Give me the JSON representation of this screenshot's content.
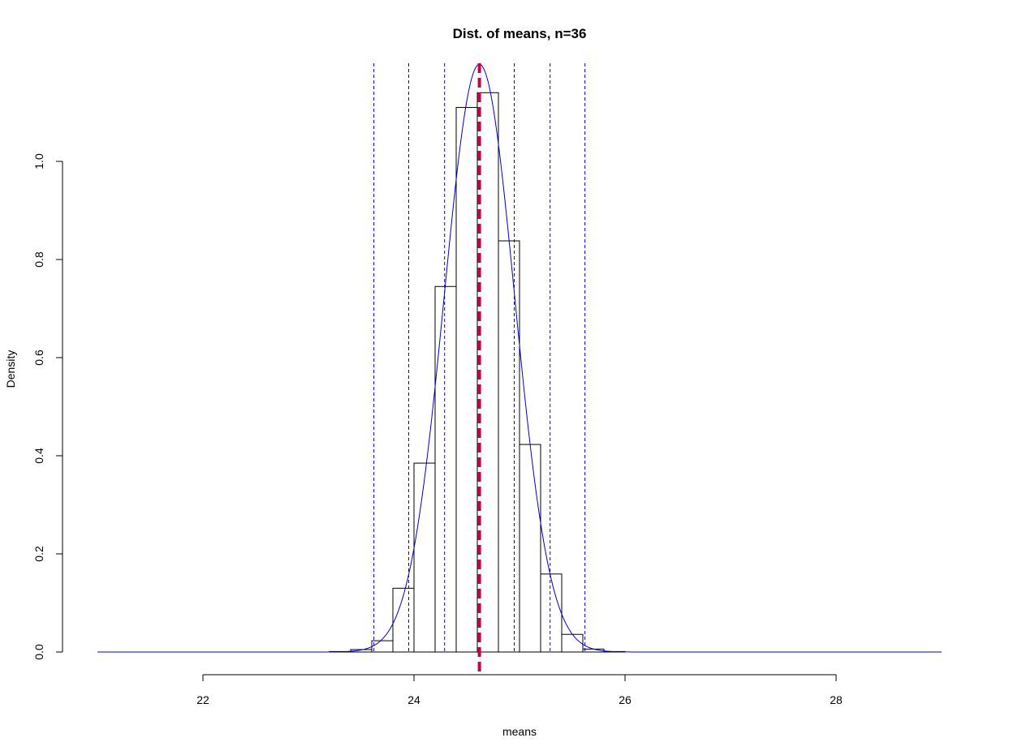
{
  "chart_data": {
    "type": "bar",
    "title": "Dist. of means, n=36",
    "xlabel": "means",
    "ylabel": "Density",
    "x_axis": {
      "ticks": [
        22,
        24,
        26,
        28
      ],
      "tick_labels": [
        "22",
        "24",
        "26",
        "28"
      ]
    },
    "y_axis": {
      "ticks": [
        0.0,
        0.2,
        0.4,
        0.6,
        0.8,
        1.0
      ],
      "tick_labels": [
        "0.0",
        "0.2",
        "0.4",
        "0.6",
        "0.8",
        "1.0"
      ]
    },
    "xlim": [
      21,
      29
    ],
    "ylim": [
      0,
      1.2
    ],
    "grid": false,
    "histogram": {
      "bin_width": 0.2,
      "bins": [
        {
          "x0": 23.2,
          "x1": 23.4,
          "density": 0.001
        },
        {
          "x0": 23.4,
          "x1": 23.6,
          "density": 0.005
        },
        {
          "x0": 23.6,
          "x1": 23.8,
          "density": 0.023
        },
        {
          "x0": 23.8,
          "x1": 24.0,
          "density": 0.13
        },
        {
          "x0": 24.0,
          "x1": 24.2,
          "density": 0.385
        },
        {
          "x0": 24.2,
          "x1": 24.4,
          "density": 0.745
        },
        {
          "x0": 24.4,
          "x1": 24.6,
          "density": 1.11
        },
        {
          "x0": 24.6,
          "x1": 24.8,
          "density": 1.14
        },
        {
          "x0": 24.8,
          "x1": 25.0,
          "density": 0.838
        },
        {
          "x0": 25.0,
          "x1": 25.2,
          "density": 0.423
        },
        {
          "x0": 25.2,
          "x1": 25.4,
          "density": 0.159
        },
        {
          "x0": 25.4,
          "x1": 25.6,
          "density": 0.036
        },
        {
          "x0": 25.6,
          "x1": 25.8,
          "density": 0.006
        },
        {
          "x0": 25.8,
          "x1": 26.0,
          "density": 0.001
        }
      ]
    },
    "density_curve": {
      "mean": 24.62,
      "sd": 0.333,
      "x_range": [
        21,
        29
      ],
      "color": "#0000cc"
    },
    "vertical_lines": {
      "mean_line": {
        "x": 24.62,
        "color": "#cc0044",
        "style": "dashed-thick"
      },
      "sd_lines": {
        "x": [
          23.62,
          23.95,
          24.29,
          24.95,
          25.29,
          25.62
        ],
        "color": "#0000ee",
        "style": "dashed"
      }
    }
  }
}
